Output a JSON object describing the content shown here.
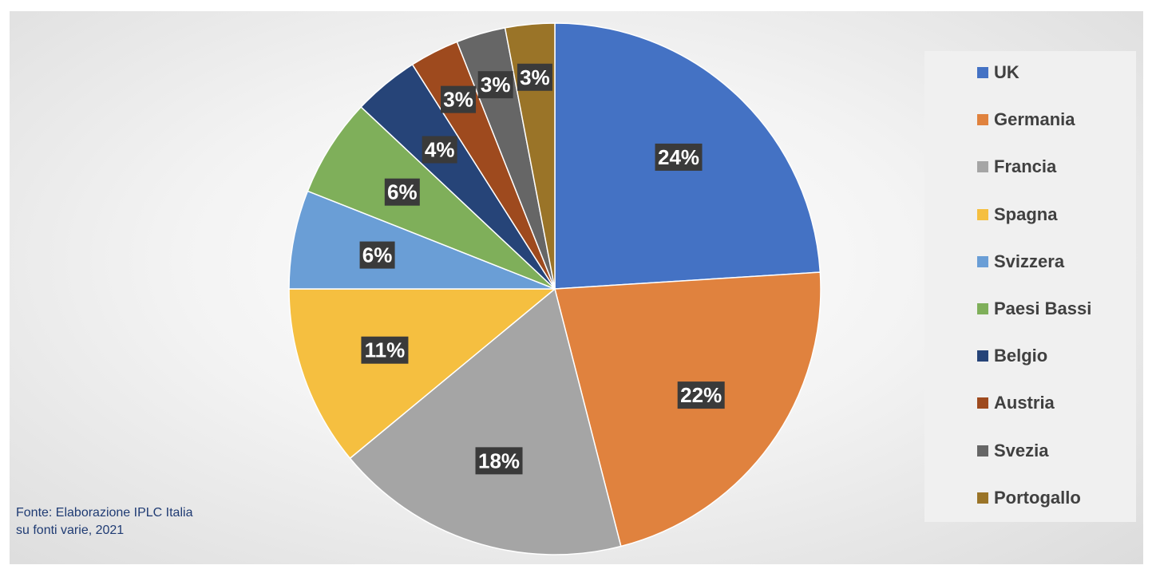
{
  "chart_data": {
    "type": "pie",
    "title": "",
    "categories": [
      "UK",
      "Germania",
      "Francia",
      "Spagna",
      "Svizzera",
      "Paesi Bassi",
      "Belgio",
      "Austria",
      "Svezia",
      "Portogallo"
    ],
    "values": [
      24,
      22,
      18,
      11,
      6,
      6,
      4,
      3,
      3,
      3
    ],
    "labels": [
      "24%",
      "22%",
      "18%",
      "11%",
      "6%",
      "6%",
      "4%",
      "3%",
      "3%",
      "3%"
    ],
    "colors": [
      "#4472C4",
      "#E0823E",
      "#A5A5A5",
      "#F5BF40",
      "#6A9ED6",
      "#7FAF5A",
      "#264478",
      "#9E4A1E",
      "#666666",
      "#9A7428"
    ],
    "legend_position": "right",
    "start_angle_deg": 0,
    "direction": "clockwise"
  },
  "source_note": {
    "line1": "Fonte: Elaborazione IPLC Italia",
    "line2": "su fonti varie, 2021"
  }
}
